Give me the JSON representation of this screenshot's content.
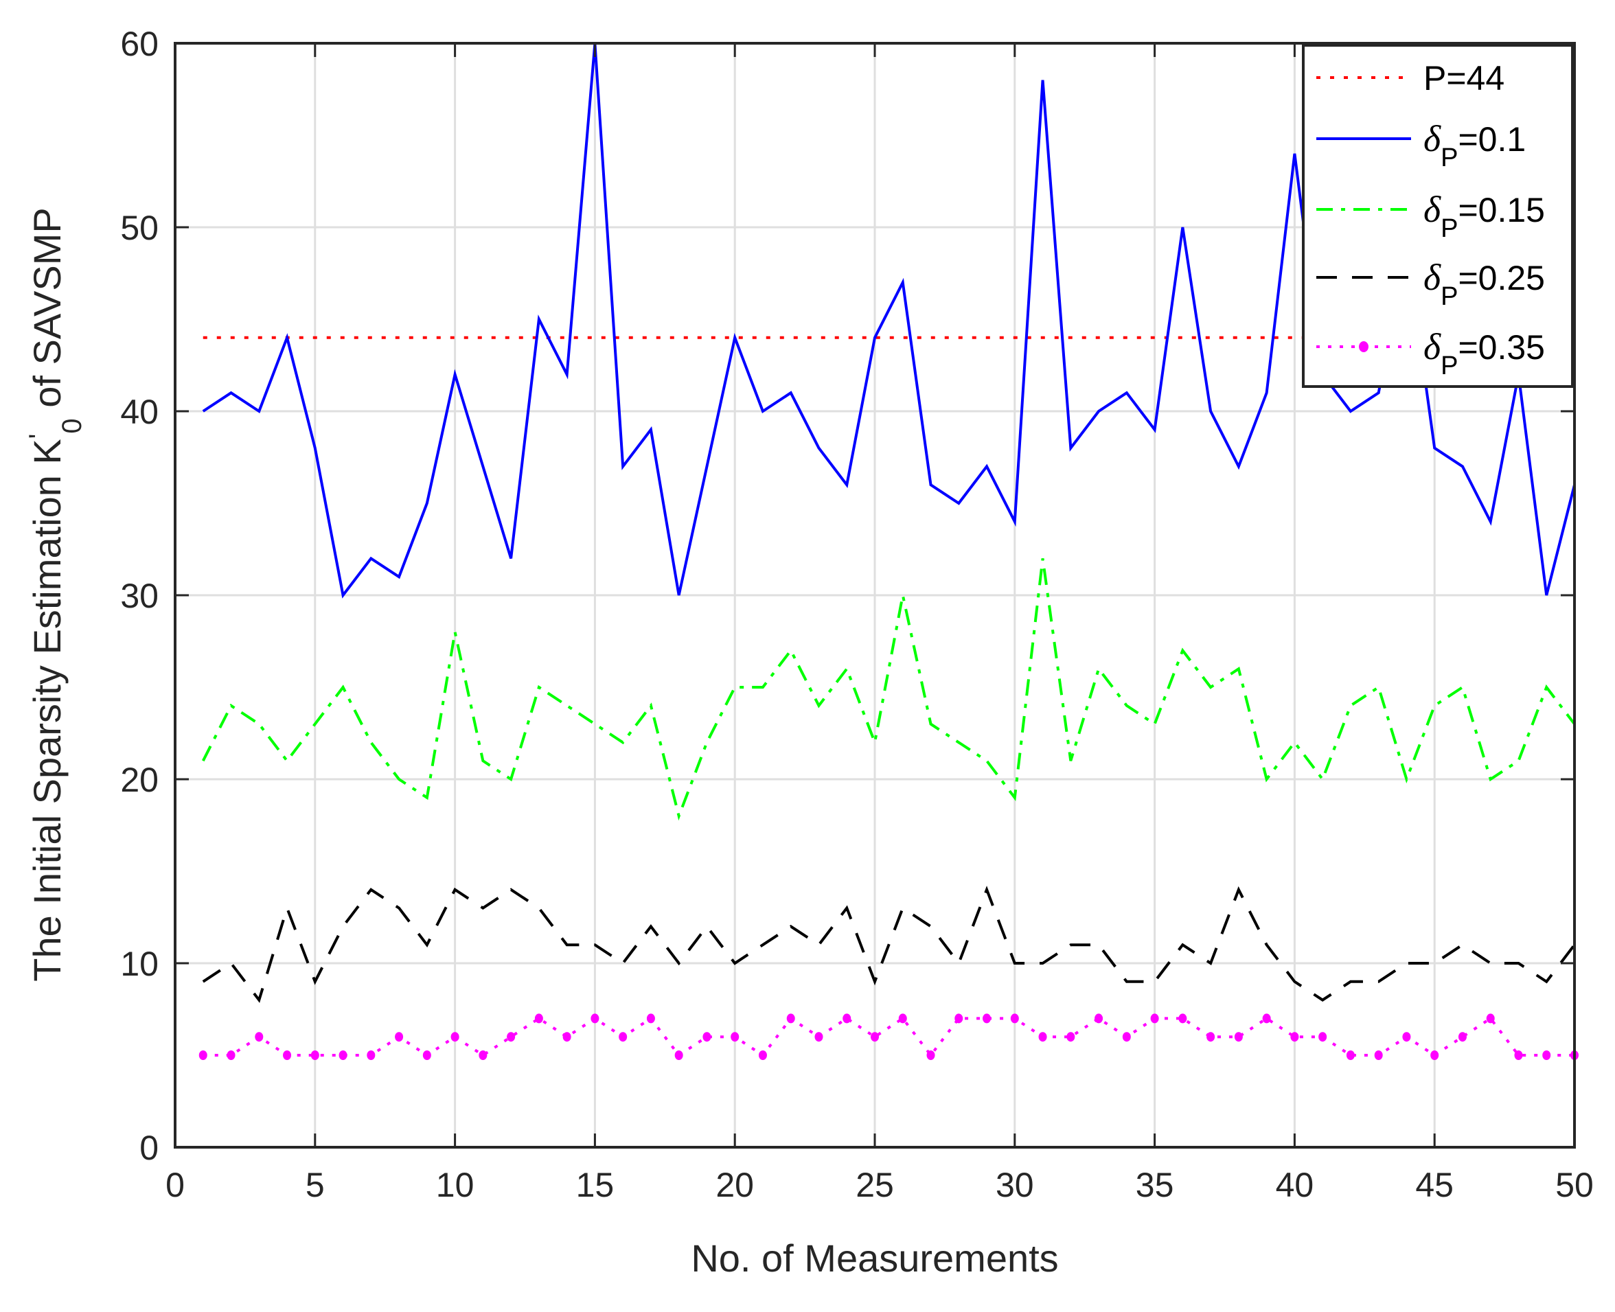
{
  "chart_data": {
    "type": "line",
    "title": "",
    "xlabel": "No. of Measurements",
    "ylabel": "The Initial Sparsity Estimation K ' 0 of SAVSMP",
    "ylabel_parts": {
      "main": "The Initial Sparsity Estimation K",
      "prime": "'",
      "sub": "0",
      "tail": " of SAVSMP"
    },
    "xlim": [
      0,
      50
    ],
    "ylim": [
      0,
      60
    ],
    "xticks": [
      0,
      5,
      10,
      15,
      20,
      25,
      30,
      35,
      40,
      45,
      50
    ],
    "yticks": [
      0,
      10,
      20,
      30,
      40,
      50,
      60
    ],
    "grid": true,
    "legend_position": "top-right (inside)",
    "x": [
      1,
      2,
      3,
      4,
      5,
      6,
      7,
      8,
      9,
      10,
      11,
      12,
      13,
      14,
      15,
      16,
      17,
      18,
      19,
      20,
      21,
      22,
      23,
      24,
      25,
      26,
      27,
      28,
      29,
      30,
      31,
      32,
      33,
      34,
      35,
      36,
      37,
      38,
      39,
      40,
      41,
      42,
      43,
      44,
      45,
      46,
      47,
      48,
      49,
      50
    ],
    "series": [
      {
        "name": "P=44",
        "legend_prefix": "",
        "legend_sub": "",
        "legend_value": "P=44",
        "color": "#ff0000",
        "style": "dotted",
        "constant": 44,
        "values": [
          44,
          44,
          44,
          44,
          44,
          44,
          44,
          44,
          44,
          44,
          44,
          44,
          44,
          44,
          44,
          44,
          44,
          44,
          44,
          44,
          44,
          44,
          44,
          44,
          44,
          44,
          44,
          44,
          44,
          44,
          44,
          44,
          44,
          44,
          44,
          44,
          44,
          44,
          44,
          44,
          44,
          44,
          44,
          44,
          44,
          44,
          44,
          44,
          44,
          44
        ]
      },
      {
        "name": "δP=0.1",
        "legend_prefix": "δ",
        "legend_sub": "P",
        "legend_value": "=0.1",
        "color": "#0000ff",
        "style": "solid",
        "values": [
          40,
          41,
          40,
          44,
          38,
          30,
          32,
          31,
          35,
          42,
          37,
          32,
          45,
          42,
          60,
          37,
          39,
          30,
          37,
          44,
          40,
          41,
          38,
          36,
          44,
          47,
          36,
          35,
          37,
          34,
          58,
          38,
          40,
          41,
          39,
          50,
          40,
          37,
          41,
          54,
          42,
          40,
          41,
          49,
          38,
          37,
          34,
          42,
          30,
          36
        ]
      },
      {
        "name": "δP=0.15",
        "legend_prefix": "δ",
        "legend_sub": "P",
        "legend_value": "=0.15",
        "color": "#00ff00",
        "style": "dashdot",
        "values": [
          21,
          24,
          23,
          21,
          23,
          25,
          22,
          20,
          19,
          28,
          21,
          20,
          25,
          24,
          23,
          22,
          24,
          18,
          22,
          25,
          25,
          27,
          24,
          26,
          22,
          30,
          23,
          22,
          21,
          19,
          32,
          21,
          26,
          24,
          23,
          27,
          25,
          26,
          20,
          22,
          20,
          24,
          25,
          20,
          24,
          25,
          20,
          21,
          25,
          23
        ]
      },
      {
        "name": "δP=0.25",
        "legend_prefix": "δ",
        "legend_sub": "P",
        "legend_value": "=0.25",
        "color": "#000000",
        "style": "dashed",
        "values": [
          9,
          10,
          8,
          13,
          9,
          12,
          14,
          13,
          11,
          14,
          13,
          14,
          13,
          11,
          11,
          10,
          12,
          10,
          12,
          10,
          11,
          12,
          11,
          13,
          9,
          13,
          12,
          10,
          14,
          10,
          10,
          11,
          11,
          9,
          9,
          11,
          10,
          14,
          11,
          9,
          8,
          9,
          9,
          10,
          10,
          11,
          10,
          10,
          9,
          11
        ]
      },
      {
        "name": "δP=0.35",
        "legend_prefix": "δ",
        "legend_sub": "P",
        "legend_value": "=0.35",
        "color": "#ff00ff",
        "style": "dotted-marker",
        "values": [
          5,
          5,
          6,
          5,
          5,
          5,
          5,
          6,
          5,
          6,
          5,
          6,
          7,
          6,
          7,
          6,
          7,
          5,
          6,
          6,
          5,
          7,
          6,
          7,
          6,
          7,
          5,
          7,
          7,
          7,
          6,
          6,
          7,
          6,
          7,
          7,
          6,
          6,
          7,
          6,
          6,
          5,
          5,
          6,
          5,
          6,
          7,
          5,
          5,
          5
        ]
      }
    ]
  },
  "colors": {
    "axis": "#262626",
    "grid": "#dfdfdf",
    "background": "#ffffff"
  }
}
